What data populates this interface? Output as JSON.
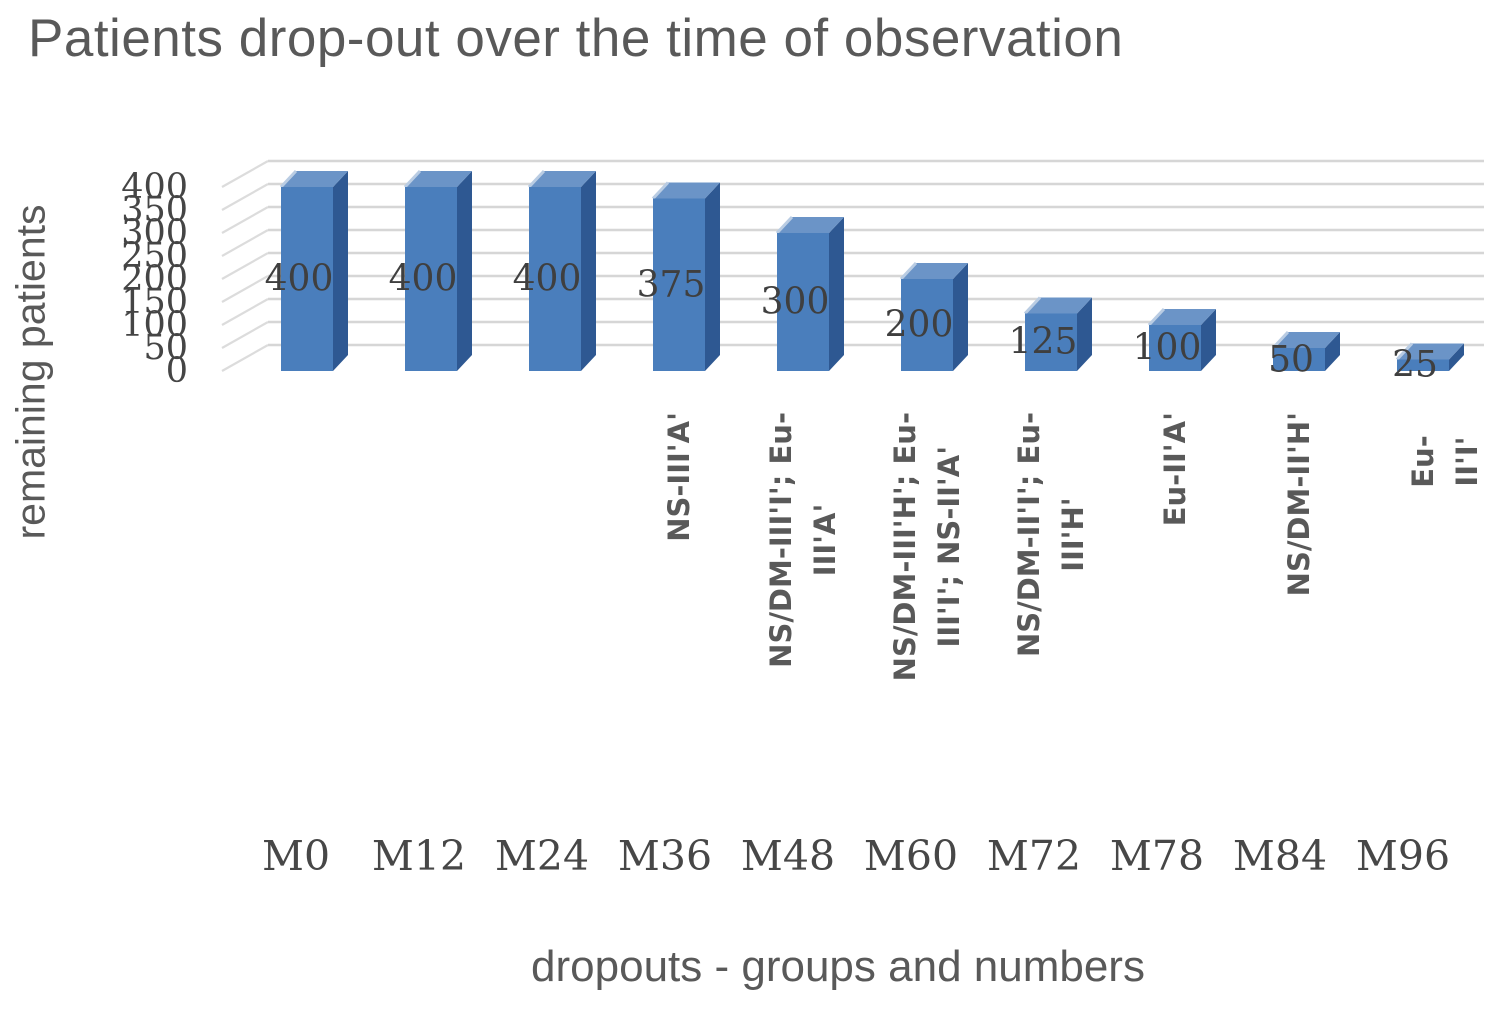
{
  "chart_data": {
    "type": "bar",
    "projection": "3d",
    "title": "Patients drop-out over the time of observation",
    "xlabel": "dropouts - groups and numbers",
    "ylabel": "remaining patients",
    "categories": [
      "M0",
      "M12",
      "M24",
      "M36",
      "M48",
      "M60",
      "M72",
      "M78",
      "M84",
      "M96"
    ],
    "values": [
      400,
      400,
      400,
      375,
      300,
      200,
      125,
      100,
      50,
      25
    ],
    "data_labels": [
      "400",
      "400",
      "400",
      "375",
      "300",
      "200",
      "125",
      "100",
      "50",
      "25"
    ],
    "group_labels": [
      "",
      "",
      "",
      "NS-III'A'",
      "NS/DM-III'I'; Eu-\nIII'A'",
      "NS/DM-III'H'; Eu-\nIII'I'; NS-II'A'",
      "NS/DM-II'I'; Eu-\nIII'H'",
      "Eu-II'A'",
      "NS/DM-II'H'",
      "Eu-II'I'"
    ],
    "ylim": [
      0,
      400
    ],
    "ytick_step": 50,
    "grid": true,
    "legend": false,
    "colors": {
      "bar_front": "#4a7ebc",
      "bar_top": "#6b94c7",
      "bar_side": "#2e5892",
      "bar_bevel": "#b9cce3",
      "gridline": "#d6d6d6",
      "wall_gridline": "#dcdcdc",
      "title_text": "#595959",
      "label_text": "#3f3f3f"
    }
  }
}
